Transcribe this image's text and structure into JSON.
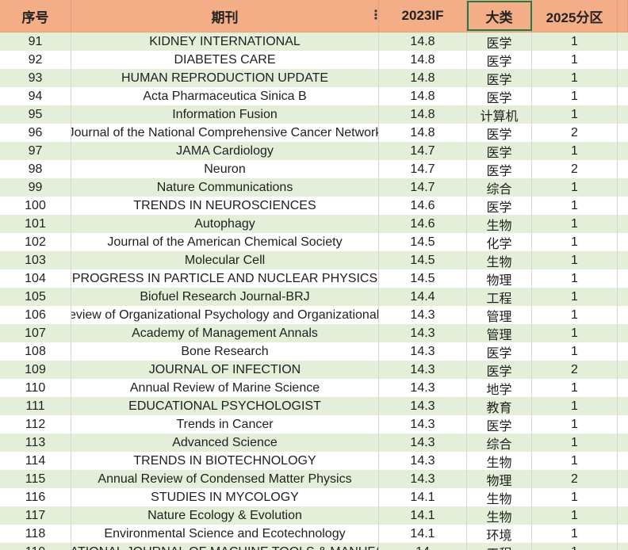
{
  "header": {
    "col_index": "序号",
    "col_journal": "期刊",
    "col_if": "2023IF",
    "col_category": "大类",
    "col_zone": "2025分区"
  },
  "rows": [
    {
      "index": "91",
      "journal": "KIDNEY INTERNATIONAL",
      "if": "14.8",
      "category": "医学",
      "zone": "1"
    },
    {
      "index": "92",
      "journal": "DIABETES CARE",
      "if": "14.8",
      "category": "医学",
      "zone": "1"
    },
    {
      "index": "93",
      "journal": "HUMAN REPRODUCTION UPDATE",
      "if": "14.8",
      "category": "医学",
      "zone": "1"
    },
    {
      "index": "94",
      "journal": "Acta Pharmaceutica Sinica B",
      "if": "14.8",
      "category": "医学",
      "zone": "1"
    },
    {
      "index": "95",
      "journal": "Information Fusion",
      "if": "14.8",
      "category": "计算机",
      "zone": "1"
    },
    {
      "index": "96",
      "journal": "Journal of the National Comprehensive Cancer Network",
      "if": "14.8",
      "category": "医学",
      "zone": "2"
    },
    {
      "index": "97",
      "journal": "JAMA Cardiology",
      "if": "14.7",
      "category": "医学",
      "zone": "1"
    },
    {
      "index": "98",
      "journal": "Neuron",
      "if": "14.7",
      "category": "医学",
      "zone": "2"
    },
    {
      "index": "99",
      "journal": "Nature Communications",
      "if": "14.7",
      "category": "综合",
      "zone": "1"
    },
    {
      "index": "100",
      "journal": "TRENDS IN NEUROSCIENCES",
      "if": "14.6",
      "category": "医学",
      "zone": "1"
    },
    {
      "index": "101",
      "journal": "Autophagy",
      "if": "14.6",
      "category": "生物",
      "zone": "1"
    },
    {
      "index": "102",
      "journal": "Journal of the American Chemical Society",
      "if": "14.5",
      "category": "化学",
      "zone": "1"
    },
    {
      "index": "103",
      "journal": "Molecular Cell",
      "if": "14.5",
      "category": "生物",
      "zone": "1"
    },
    {
      "index": "104",
      "journal": "PROGRESS IN PARTICLE AND NUCLEAR PHYSICS",
      "if": "14.5",
      "category": "物理",
      "zone": "1"
    },
    {
      "index": "105",
      "journal": "Biofuel Research Journal-BRJ",
      "if": "14.4",
      "category": "工程",
      "zone": "1"
    },
    {
      "index": "106",
      "journal": "Annual Review of Organizational Psychology and Organizational Behavior",
      "if": "14.3",
      "category": "管理",
      "zone": "1"
    },
    {
      "index": "107",
      "journal": "Academy of Management Annals",
      "if": "14.3",
      "category": "管理",
      "zone": "1"
    },
    {
      "index": "108",
      "journal": "Bone Research",
      "if": "14.3",
      "category": "医学",
      "zone": "1"
    },
    {
      "index": "109",
      "journal": "JOURNAL OF INFECTION",
      "if": "14.3",
      "category": "医学",
      "zone": "2"
    },
    {
      "index": "110",
      "journal": "Annual Review of Marine Science",
      "if": "14.3",
      "category": "地学",
      "zone": "1"
    },
    {
      "index": "111",
      "journal": "EDUCATIONAL PSYCHOLOGIST",
      "if": "14.3",
      "category": "教育",
      "zone": "1"
    },
    {
      "index": "112",
      "journal": "Trends in Cancer",
      "if": "14.3",
      "category": "医学",
      "zone": "1"
    },
    {
      "index": "113",
      "journal": "Advanced Science",
      "if": "14.3",
      "category": "综合",
      "zone": "1"
    },
    {
      "index": "114",
      "journal": "TRENDS IN BIOTECHNOLOGY",
      "if": "14.3",
      "category": "生物",
      "zone": "1"
    },
    {
      "index": "115",
      "journal": "Annual Review of Condensed Matter Physics",
      "if": "14.3",
      "category": "物理",
      "zone": "2"
    },
    {
      "index": "116",
      "journal": "STUDIES IN MYCOLOGY",
      "if": "14.1",
      "category": "生物",
      "zone": "1"
    },
    {
      "index": "117",
      "journal": "Nature Ecology & Evolution",
      "if": "14.1",
      "category": "生物",
      "zone": "1"
    },
    {
      "index": "118",
      "journal": "Environmental Science and Ecotechnology",
      "if": "14.1",
      "category": "环境",
      "zone": "1"
    },
    {
      "index": "119",
      "journal": "INTERNATIONAL JOURNAL OF MACHINE TOOLS & MANUFACTURE",
      "if": "14",
      "category": "工程",
      "zone": "1"
    }
  ],
  "colors": {
    "header_bg": "#f4ae87",
    "band_green": "#e4efd9",
    "selection_border": "#1e7b45"
  },
  "icons": {
    "header_menu": "vertical-ellipsis-icon"
  }
}
